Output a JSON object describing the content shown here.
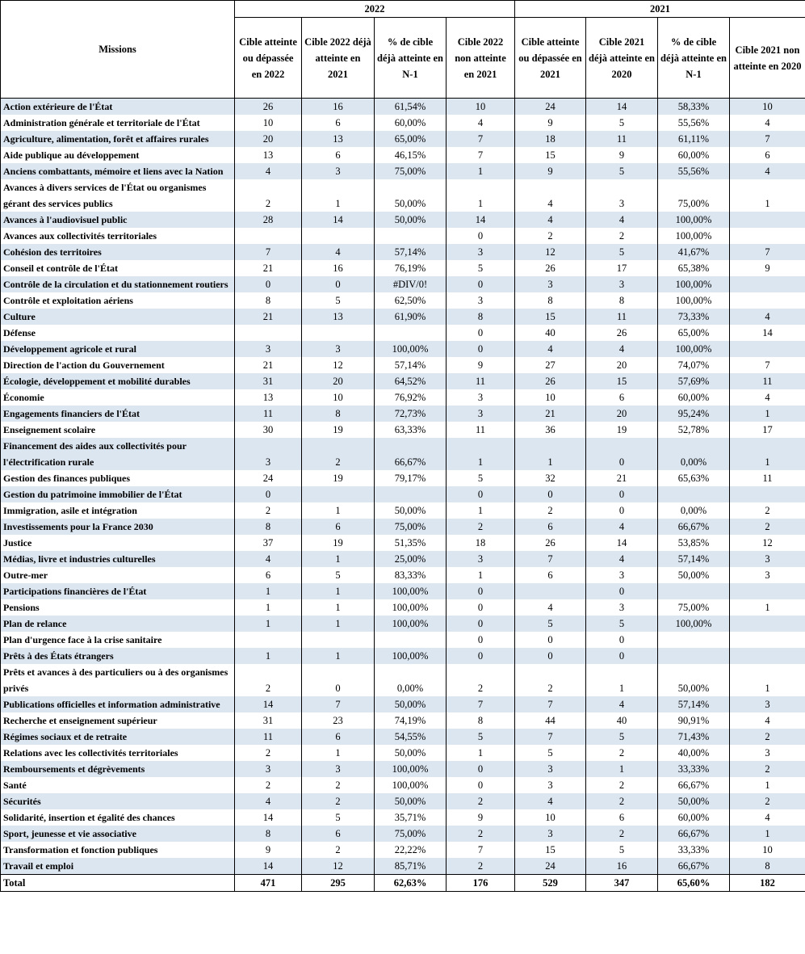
{
  "header": {
    "missions": "Missions",
    "groups": [
      "2022",
      "2021"
    ],
    "columns": [
      "Cible atteinte ou dépassée en 2022",
      "Cible 2022 déjà atteinte en 2021",
      "% de cible déjà atteinte en N-1",
      "Cible 2022 non atteinte en 2021",
      "Cible atteinte ou dépassée en 2021",
      "Cible 2021 déjà atteinte en 2020",
      "% de cible déjà atteinte en N-1",
      "Cible 2021 non atteinte en 2020"
    ]
  },
  "table": {
    "rows": [
      [
        "Action extérieure de l'État",
        "26",
        "16",
        "61,54%",
        "10",
        "24",
        "14",
        "58,33%",
        "10"
      ],
      [
        "Administration générale et territoriale de l'État",
        "10",
        "6",
        "60,00%",
        "4",
        "9",
        "5",
        "55,56%",
        "4"
      ],
      [
        "Agriculture, alimentation, forêt et affaires rurales",
        "20",
        "13",
        "65,00%",
        "7",
        "18",
        "11",
        "61,11%",
        "7"
      ],
      [
        "Aide publique au développement",
        "13",
        "6",
        "46,15%",
        "7",
        "15",
        "9",
        "60,00%",
        "6"
      ],
      [
        "Anciens combattants, mémoire et liens avec la Nation",
        "4",
        "3",
        "75,00%",
        "1",
        "9",
        "5",
        "55,56%",
        "4"
      ],
      [
        "Avances à divers services de l'État ou organismes gérant des services publics",
        "2",
        "1",
        "50,00%",
        "1",
        "4",
        "3",
        "75,00%",
        "1"
      ],
      [
        "Avances à l'audiovisuel public",
        "28",
        "14",
        "50,00%",
        "14",
        "4",
        "4",
        "100,00%",
        null
      ],
      [
        "Avances aux collectivités territoriales",
        null,
        null,
        null,
        "0",
        "2",
        "2",
        "100,00%",
        null
      ],
      [
        "Cohésion des territoires",
        "7",
        "4",
        "57,14%",
        "3",
        "12",
        "5",
        "41,67%",
        "7"
      ],
      [
        "Conseil et contrôle de l'État",
        "21",
        "16",
        "76,19%",
        "5",
        "26",
        "17",
        "65,38%",
        "9"
      ],
      [
        "Contrôle de la circulation et du stationnement routiers",
        "0",
        "0",
        "#DIV/0!",
        "0",
        "3",
        "3",
        "100,00%",
        null
      ],
      [
        "Contrôle et exploitation aériens",
        "8",
        "5",
        "62,50%",
        "3",
        "8",
        "8",
        "100,00%",
        null
      ],
      [
        "Culture",
        "21",
        "13",
        "61,90%",
        "8",
        "15",
        "11",
        "73,33%",
        "4"
      ],
      [
        "Défense",
        null,
        null,
        null,
        "0",
        "40",
        "26",
        "65,00%",
        "14"
      ],
      [
        "Développement agricole et rural",
        "3",
        "3",
        "100,00%",
        "0",
        "4",
        "4",
        "100,00%",
        null
      ],
      [
        "Direction de l'action du Gouvernement",
        "21",
        "12",
        "57,14%",
        "9",
        "27",
        "20",
        "74,07%",
        "7"
      ],
      [
        "Écologie, développement et mobilité durables",
        "31",
        "20",
        "64,52%",
        "11",
        "26",
        "15",
        "57,69%",
        "11"
      ],
      [
        "Économie",
        "13",
        "10",
        "76,92%",
        "3",
        "10",
        "6",
        "60,00%",
        "4"
      ],
      [
        "Engagements financiers de l'État",
        "11",
        "8",
        "72,73%",
        "3",
        "21",
        "20",
        "95,24%",
        "1"
      ],
      [
        "Enseignement scolaire",
        "30",
        "19",
        "63,33%",
        "11",
        "36",
        "19",
        "52,78%",
        "17"
      ],
      [
        "Financement des aides aux collectivités pour l'électrification rurale",
        "3",
        "2",
        "66,67%",
        "1",
        "1",
        "0",
        "0,00%",
        "1"
      ],
      [
        "Gestion des finances publiques",
        "24",
        "19",
        "79,17%",
        "5",
        "32",
        "21",
        "65,63%",
        "11"
      ],
      [
        "Gestion du patrimoine immobilier de l'État",
        "0",
        null,
        null,
        "0",
        "0",
        "0",
        null,
        null
      ],
      [
        "Immigration, asile et intégration",
        "2",
        "1",
        "50,00%",
        "1",
        "2",
        "0",
        "0,00%",
        "2"
      ],
      [
        "Investissements pour la France 2030",
        "8",
        "6",
        "75,00%",
        "2",
        "6",
        "4",
        "66,67%",
        "2"
      ],
      [
        "Justice",
        "37",
        "19",
        "51,35%",
        "18",
        "26",
        "14",
        "53,85%",
        "12"
      ],
      [
        "Médias, livre et industries culturelles",
        "4",
        "1",
        "25,00%",
        "3",
        "7",
        "4",
        "57,14%",
        "3"
      ],
      [
        "Outre-mer",
        "6",
        "5",
        "83,33%",
        "1",
        "6",
        "3",
        "50,00%",
        "3"
      ],
      [
        "Participations financières de l'État",
        "1",
        "1",
        "100,00%",
        "0",
        null,
        "0",
        null,
        null
      ],
      [
        "Pensions",
        "1",
        "1",
        "100,00%",
        "0",
        "4",
        "3",
        "75,00%",
        "1"
      ],
      [
        "Plan de relance",
        "1",
        "1",
        "100,00%",
        "0",
        "5",
        "5",
        "100,00%",
        null
      ],
      [
        "Plan d'urgence face à la crise sanitaire",
        null,
        null,
        null,
        "0",
        "0",
        "0",
        null,
        null
      ],
      [
        "Prêts à des États étrangers",
        "1",
        "1",
        "100,00%",
        "0",
        "0",
        "0",
        null,
        null
      ],
      [
        "Prêts et avances à des particuliers ou à des organismes privés",
        "2",
        "0",
        "0,00%",
        "2",
        "2",
        "1",
        "50,00%",
        "1"
      ],
      [
        "Publications officielles et information administrative",
        "14",
        "7",
        "50,00%",
        "7",
        "7",
        "4",
        "57,14%",
        "3"
      ],
      [
        "Recherche et enseignement supérieur",
        "31",
        "23",
        "74,19%",
        "8",
        "44",
        "40",
        "90,91%",
        "4"
      ],
      [
        "Régimes sociaux et de retraite",
        "11",
        "6",
        "54,55%",
        "5",
        "7",
        "5",
        "71,43%",
        "2"
      ],
      [
        "Relations avec les collectivités territoriales",
        "2",
        "1",
        "50,00%",
        "1",
        "5",
        "2",
        "40,00%",
        "3"
      ],
      [
        "Remboursements et dégrèvements",
        "3",
        "3",
        "100,00%",
        "0",
        "3",
        "1",
        "33,33%",
        "2"
      ],
      [
        "Santé",
        "2",
        "2",
        "100,00%",
        "0",
        "3",
        "2",
        "66,67%",
        "1"
      ],
      [
        "Sécurités",
        "4",
        "2",
        "50,00%",
        "2",
        "4",
        "2",
        "50,00%",
        "2"
      ],
      [
        "Solidarité, insertion et égalité des chances",
        "14",
        "5",
        "35,71%",
        "9",
        "10",
        "6",
        "60,00%",
        "4"
      ],
      [
        "Sport, jeunesse et vie associative",
        "8",
        "6",
        "75,00%",
        "2",
        "3",
        "2",
        "66,67%",
        "1"
      ],
      [
        "Transformation et fonction publiques",
        "9",
        "2",
        "22,22%",
        "7",
        "15",
        "5",
        "33,33%",
        "10"
      ],
      [
        "Travail et emploi",
        "14",
        "12",
        "85,71%",
        "2",
        "24",
        "16",
        "66,67%",
        "8"
      ]
    ],
    "total": [
      "Total",
      "471",
      "295",
      "62,63%",
      "176",
      "529",
      "347",
      "65,60%",
      "182"
    ]
  }
}
